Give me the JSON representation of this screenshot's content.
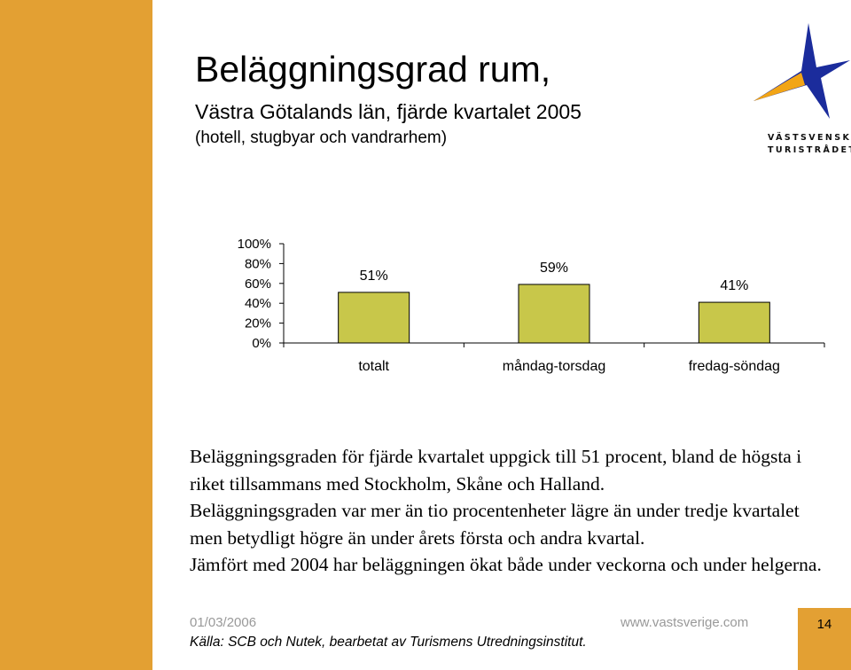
{
  "slide": {
    "title": "Beläggningsgrad rum,",
    "subtitle": "Västra Götalands län, fjärde kvartalet 2005",
    "subnote": "(hotell, stugbyar och vandrarhem)",
    "logo_line1": "VÄSTSVENSKA",
    "logo_line2": "TURISTRÅDET",
    "paragraphs": [
      "Beläggningsgraden för fjärde kvartalet uppgick till 51 procent, bland de högsta i riket tillsammans med Stockholm, Skåne och Halland.",
      "Beläggningsgraden var mer än tio procentenheter lägre än under tredje kvartalet men betydligt högre än under årets första och andra kvartal.",
      "Jämfört med 2004 har beläggningen ökat både under veckorna och under helgerna."
    ],
    "footer_date": "01/03/2006",
    "footer_url": "www.vastsverige.com",
    "page_number": "14",
    "source": "Källa: SCB och Nutek, bearbetat av Turismens Utredningsinstitut."
  },
  "colors": {
    "accent_orange": "#E3A033",
    "bar_fill": "#C8C74A",
    "logo_blue": "#1B2C9C",
    "logo_orange": "#F2A516"
  },
  "chart_data": {
    "type": "bar",
    "categories": [
      "totalt",
      "måndag-torsdag",
      "fredag-söndag"
    ],
    "values": [
      51,
      59,
      41
    ],
    "data_labels": [
      "51%",
      "59%",
      "41%"
    ],
    "ylim": [
      0,
      100
    ],
    "yticks": [
      "0%",
      "20%",
      "40%",
      "60%",
      "80%",
      "100%"
    ],
    "grid": false,
    "legend": "none"
  }
}
